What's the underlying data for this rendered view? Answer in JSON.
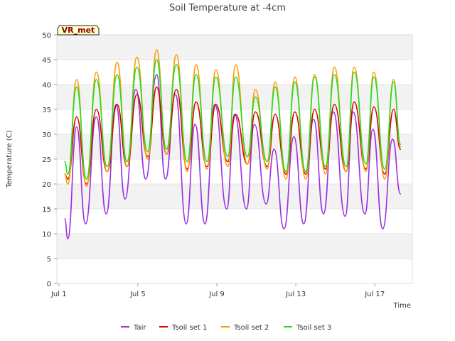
{
  "chart_data": {
    "type": "line",
    "title": "Soil Temperature at -4cm",
    "station_label": "VR_met",
    "xlabel": "Time",
    "ylabel": "Temperature (C)",
    "x_unit": "days since Jul 1",
    "xlim": [
      -0.1,
      17.9
    ],
    "ylim": [
      0,
      50
    ],
    "x_ticks": [
      {
        "value": 0,
        "label": "Jul 1"
      },
      {
        "value": 4,
        "label": "Jul 5"
      },
      {
        "value": 8,
        "label": "Jul 9"
      },
      {
        "value": 12,
        "label": "Jul 13"
      },
      {
        "value": 16,
        "label": "Jul 17"
      }
    ],
    "y_ticks": [
      0,
      5,
      10,
      15,
      20,
      25,
      30,
      35,
      40,
      45,
      50
    ],
    "grid": "alternating horizontal bands",
    "legend_position": "bottom",
    "series": [
      {
        "name": "Tair",
        "color": "#9b30e0",
        "x": [
          0.3,
          0.45,
          0.9,
          1.35,
          1.9,
          2.4,
          2.9,
          3.35,
          3.9,
          4.4,
          4.95,
          5.4,
          5.9,
          6.45,
          6.9,
          7.4,
          7.9,
          8.5,
          8.9,
          9.5,
          9.9,
          10.5,
          10.9,
          11.4,
          11.9,
          12.4,
          12.9,
          13.4,
          13.9,
          14.5,
          14.9,
          15.5,
          15.9,
          16.4,
          16.9,
          17.3
        ],
        "values": [
          13,
          9,
          31.5,
          12,
          33.5,
          14,
          36,
          17,
          39,
          21,
          42,
          21,
          38,
          12,
          32,
          12,
          36,
          15,
          34,
          15,
          32,
          16,
          27,
          11,
          29.5,
          12,
          33,
          14,
          34.5,
          13.5,
          34.5,
          14,
          31,
          11,
          29,
          18
        ]
      },
      {
        "name": "Tsoil set 1",
        "color": "#dd0000",
        "x": [
          0.3,
          0.45,
          0.9,
          1.4,
          1.9,
          2.45,
          2.95,
          3.45,
          3.95,
          4.5,
          4.95,
          5.45,
          5.95,
          6.5,
          6.95,
          7.5,
          7.95,
          8.55,
          8.95,
          9.55,
          9.95,
          10.55,
          10.95,
          11.5,
          11.95,
          12.5,
          12.95,
          13.5,
          13.95,
          14.55,
          14.95,
          15.55,
          15.95,
          16.5,
          16.95,
          17.3
        ],
        "values": [
          22,
          21,
          33.5,
          20,
          35,
          22.5,
          36,
          23.5,
          38,
          25.5,
          39.5,
          26,
          39,
          23,
          36.5,
          23.5,
          36,
          24.5,
          34,
          24,
          34.5,
          23.5,
          34,
          22,
          34.5,
          22,
          35,
          23,
          36,
          22.5,
          36.5,
          23,
          35.5,
          22,
          35,
          27
        ]
      },
      {
        "name": "Tsoil set 2",
        "color": "#ff9900",
        "x": [
          0.3,
          0.45,
          0.9,
          1.4,
          1.9,
          2.45,
          2.95,
          3.45,
          3.95,
          4.5,
          4.95,
          5.45,
          5.95,
          6.5,
          6.95,
          7.5,
          7.95,
          8.55,
          8.95,
          9.55,
          9.95,
          10.55,
          10.95,
          11.5,
          11.95,
          12.5,
          12.95,
          13.5,
          13.95,
          14.55,
          14.95,
          15.55,
          15.95,
          16.5,
          16.95,
          17.3
        ],
        "values": [
          22,
          20,
          41,
          19.5,
          42.5,
          22.5,
          44.5,
          23.5,
          45.5,
          25,
          47,
          26,
          46,
          22.5,
          44,
          23,
          43,
          23.5,
          44,
          24,
          39,
          23,
          40.5,
          21,
          41.5,
          21,
          42,
          22,
          43.5,
          22.5,
          43.5,
          22.5,
          42.5,
          21,
          41,
          27.5
        ]
      },
      {
        "name": "Tsoil set 3",
        "color": "#22dd22",
        "x": [
          0.3,
          0.45,
          0.9,
          1.4,
          1.9,
          2.45,
          2.95,
          3.45,
          3.95,
          4.5,
          4.95,
          5.45,
          5.95,
          6.5,
          6.95,
          7.5,
          7.95,
          8.55,
          8.95,
          9.55,
          9.95,
          10.55,
          10.95,
          11.5,
          11.95,
          12.5,
          12.95,
          13.5,
          13.95,
          14.55,
          14.95,
          15.55,
          15.95,
          16.5,
          16.95,
          17.3
        ],
        "values": [
          24.5,
          22,
          39.5,
          21,
          41,
          23.5,
          42,
          24.5,
          43.5,
          26.5,
          45,
          27,
          44,
          24.5,
          42,
          24.5,
          41.5,
          25.5,
          41.5,
          25.5,
          37.5,
          24.5,
          39.5,
          22.5,
          40.5,
          22.5,
          41.5,
          23.5,
          42,
          23.5,
          42.5,
          24,
          41.5,
          23,
          40.5,
          28
        ]
      }
    ]
  }
}
